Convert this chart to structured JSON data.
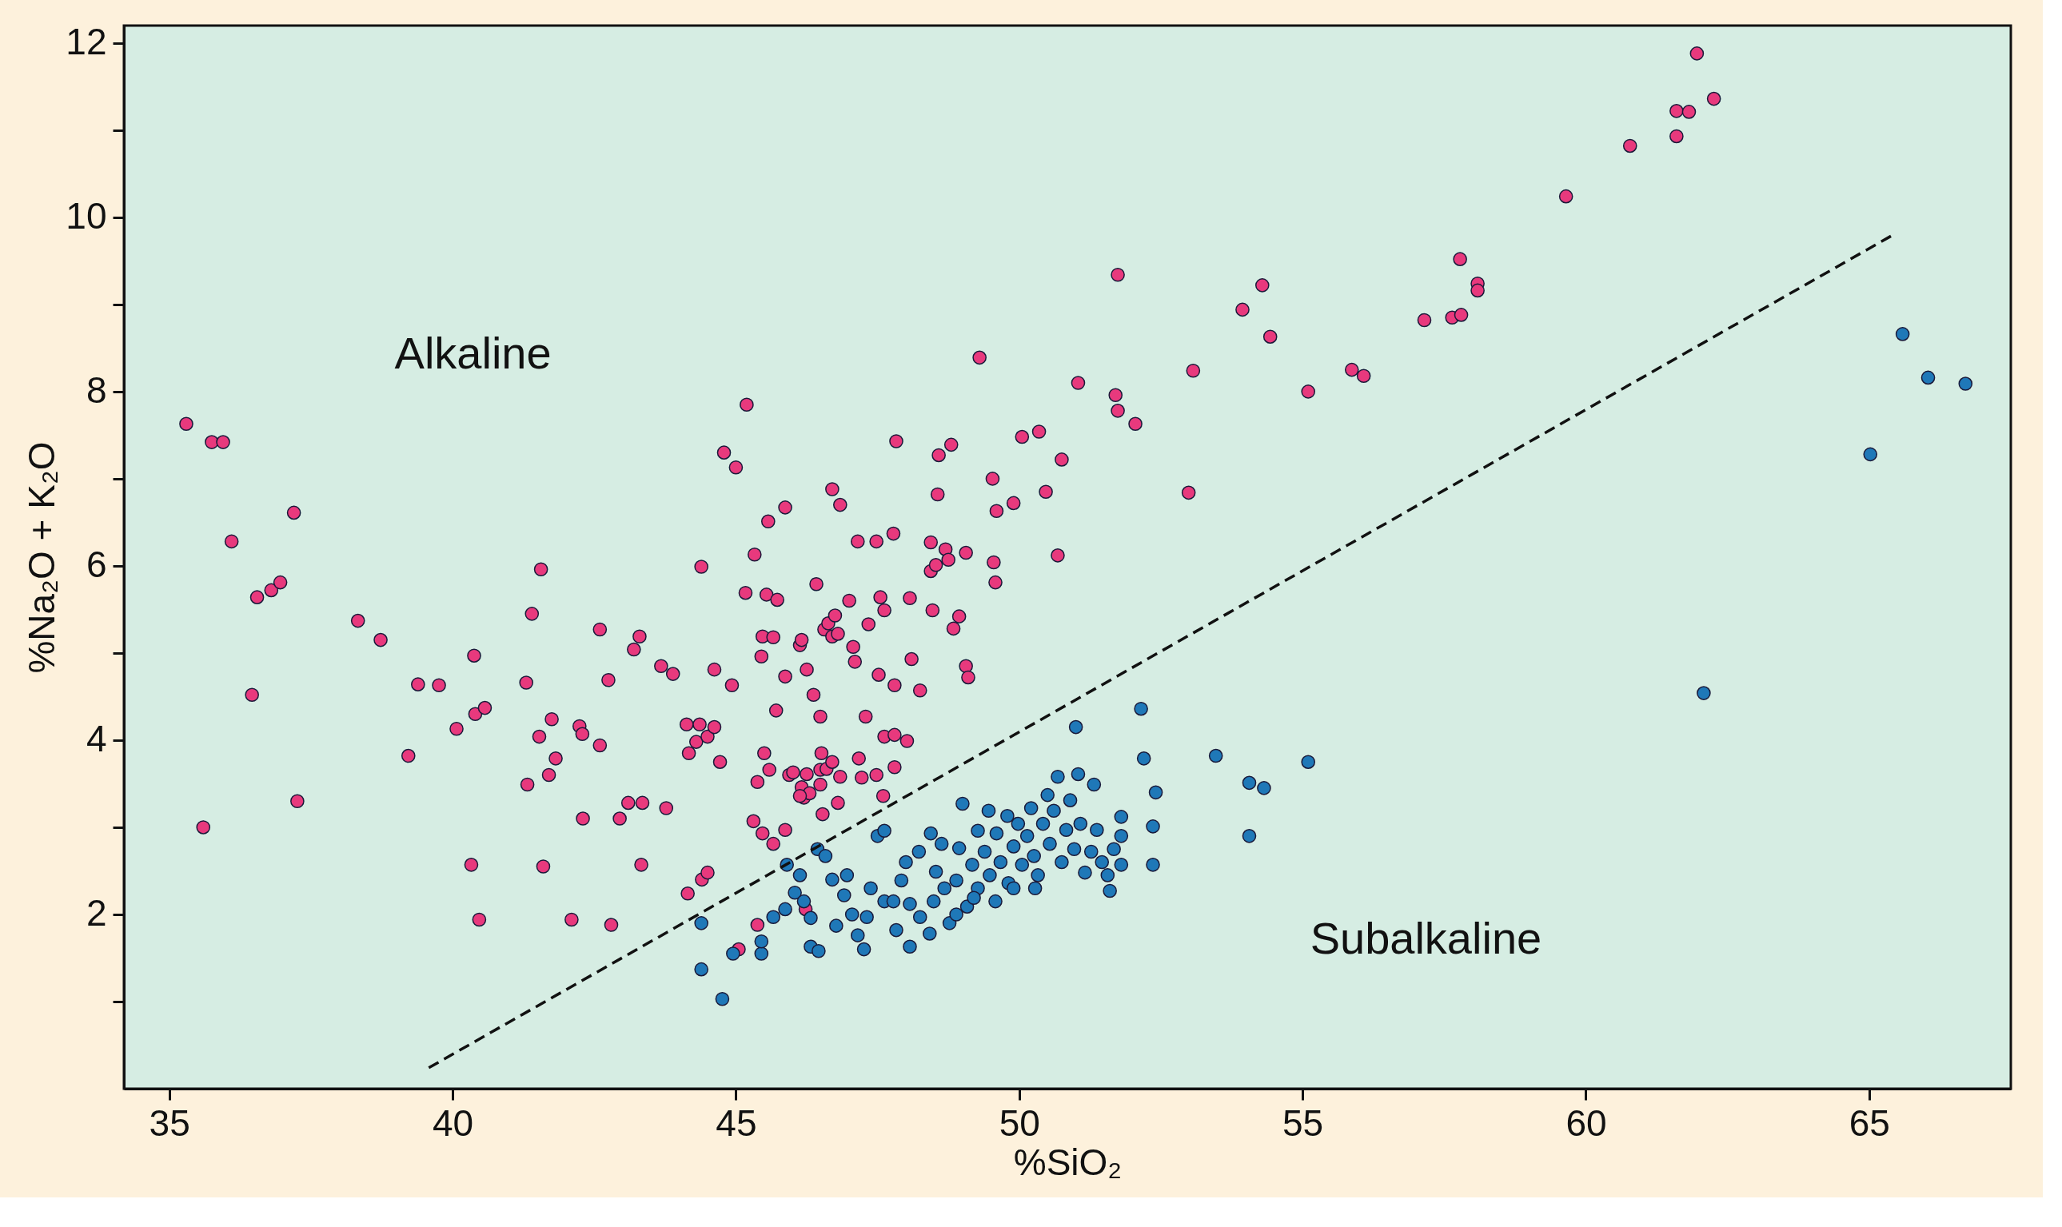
{
  "chart_data": {
    "type": "scatter",
    "xlabel": "%SiO₂",
    "ylabel": "%Na₂O + K₂O",
    "xlim": [
      34.2,
      67.5
    ],
    "ylim": [
      0,
      12.2
    ],
    "xticks": [
      35,
      40,
      45,
      50,
      55,
      60,
      65
    ],
    "yticks": [
      {
        "value": 1,
        "label": null
      },
      2,
      {
        "value": 3,
        "label": null
      },
      4,
      {
        "value": 5,
        "label": null
      },
      6,
      {
        "value": 7,
        "label": null
      },
      8,
      {
        "value": 9,
        "label": null
      },
      10,
      {
        "value": 11,
        "label": null
      },
      12
    ],
    "grid": false,
    "annotations": [
      "Alkaline",
      "Subalkaline"
    ],
    "series": [
      {
        "type": "scatter",
        "marker": "circle",
        "color": "#e8397d",
        "x": [
          35.3,
          35.75,
          35.95,
          36.1,
          35.6,
          36.46,
          36.55,
          36.8,
          36.96,
          37.2,
          37.26,
          38.33,
          38.73,
          39.22,
          39.39,
          39.76,
          40.07,
          40.38,
          40.4,
          40.57,
          40.33,
          40.47,
          41.3,
          41.32,
          41.4,
          41.56,
          41.53,
          41.7,
          41.75,
          41.82,
          41.6,
          42.1,
          42.24,
          42.29,
          42.3,
          42.6,
          42.6,
          42.75,
          42.8,
          42.95,
          43.1,
          43.2,
          43.3,
          43.35,
          43.33,
          43.68,
          43.77,
          43.89,
          44.13,
          44.17,
          44.3,
          44.36,
          44.39,
          44.5,
          44.62,
          44.62,
          44.72,
          44.79,
          45.0,
          44.93,
          45.19,
          45.17,
          45.33,
          45.38,
          45.45,
          45.47,
          45.57,
          45.87,
          45.54,
          45.73,
          45.66,
          45.71,
          45.5,
          45.59,
          45.31,
          45.47,
          45.66,
          45.87,
          45.94,
          45.87,
          46.01,
          46.16,
          46.2,
          46.25,
          46.13,
          46.25,
          46.37,
          46.49,
          46.49,
          46.51,
          46.3,
          46.13,
          46.16,
          46.42,
          46.49,
          46.56,
          46.63,
          46.7,
          46.75,
          46.8,
          46.7,
          46.84,
          46.6,
          46.7,
          46.84,
          46.8,
          46.53,
          47.0,
          47.07,
          47.1,
          47.17,
          47.22,
          47.15,
          47.29,
          47.34,
          47.48,
          47.55,
          47.52,
          47.48,
          47.6,
          47.62,
          47.78,
          47.83,
          47.8,
          47.62,
          47.8,
          47.8,
          48.02,
          48.07,
          48.1,
          48.25,
          48.44,
          48.44,
          48.47,
          48.53,
          48.56,
          48.58,
          48.7,
          48.75,
          48.8,
          48.84,
          48.94,
          49.06,
          49.06,
          49.1,
          49.3,
          49.53,
          49.55,
          49.58,
          49.6,
          49.9,
          50.05,
          50.35,
          50.47,
          50.75,
          50.68,
          51.04,
          51.7,
          51.74,
          51.74,
          52.05,
          52.99,
          53.07,
          53.94,
          54.29,
          54.43,
          55.1,
          55.87,
          56.08,
          57.15,
          57.64,
          57.8,
          57.78,
          58.09,
          58.09,
          59.65,
          60.78,
          61.6,
          61.6,
          61.82,
          61.96,
          62.26,
          44.15,
          44.4,
          44.5,
          45.05,
          45.38,
          46.23
        ],
        "values": [
          7.63,
          7.42,
          7.42,
          6.28,
          3.0,
          4.52,
          5.64,
          5.72,
          5.81,
          6.61,
          3.3,
          5.37,
          5.15,
          3.82,
          4.64,
          4.63,
          4.13,
          4.97,
          4.3,
          4.37,
          2.57,
          1.94,
          4.66,
          3.49,
          5.45,
          5.96,
          4.04,
          3.6,
          4.24,
          3.79,
          2.55,
          1.94,
          4.16,
          4.07,
          3.1,
          5.27,
          3.94,
          4.69,
          1.88,
          3.1,
          3.28,
          5.04,
          5.19,
          3.28,
          2.57,
          4.85,
          3.22,
          4.76,
          4.18,
          3.85,
          3.98,
          4.18,
          5.99,
          4.04,
          4.15,
          4.81,
          3.75,
          7.3,
          7.13,
          4.63,
          7.85,
          5.69,
          6.13,
          3.52,
          4.96,
          5.19,
          6.51,
          6.67,
          5.67,
          5.61,
          5.18,
          4.34,
          3.85,
          3.66,
          3.07,
          2.93,
          2.81,
          2.97,
          3.6,
          4.73,
          3.63,
          3.46,
          3.34,
          3.61,
          5.09,
          4.81,
          4.52,
          3.66,
          3.49,
          3.85,
          3.39,
          3.36,
          5.15,
          5.79,
          4.27,
          5.27,
          5.34,
          5.19,
          5.43,
          5.22,
          6.88,
          6.7,
          3.67,
          3.75,
          3.58,
          3.28,
          3.15,
          5.6,
          5.07,
          4.9,
          3.79,
          3.57,
          6.28,
          4.27,
          5.33,
          6.28,
          5.64,
          4.75,
          3.6,
          3.36,
          5.49,
          6.37,
          7.43,
          3.69,
          4.04,
          4.06,
          4.63,
          3.99,
          5.63,
          4.93,
          4.57,
          5.94,
          6.27,
          5.49,
          6.01,
          6.82,
          7.27,
          6.19,
          6.07,
          7.39,
          5.28,
          5.42,
          6.15,
          4.85,
          4.72,
          8.39,
          7.0,
          6.04,
          5.81,
          6.63,
          6.72,
          7.48,
          7.54,
          6.85,
          7.22,
          6.12,
          8.1,
          7.96,
          7.78,
          9.34,
          7.63,
          6.84,
          8.24,
          8.94,
          9.22,
          8.63,
          8.0,
          8.25,
          8.18,
          8.82,
          8.85,
          8.88,
          9.52,
          9.24,
          9.16,
          10.24,
          10.82,
          10.93,
          11.22,
          11.21,
          11.88,
          11.36,
          2.24,
          2.4,
          2.48,
          1.6,
          1.88,
          2.06
        ]
      },
      {
        "type": "scatter",
        "marker": "circle",
        "color": "#1f78b8",
        "x": [
          65.59,
          66.04,
          66.7,
          65.02,
          62.08,
          55.1,
          54.32,
          54.06,
          53.47,
          54.06,
          52.15,
          51.0,
          52.2,
          52.41,
          52.36,
          52.36,
          51.6,
          51.8,
          51.8,
          51.32,
          51.04,
          44.39,
          44.39,
          44.76,
          44.95,
          45.45,
          45.45,
          45.66,
          45.87,
          46.04,
          46.2,
          46.32,
          46.32,
          46.46,
          46.44,
          46.58,
          46.7,
          46.77,
          46.91,
          47.05,
          47.15,
          47.26,
          47.38,
          47.5,
          47.62,
          47.62,
          47.83,
          47.92,
          48.0,
          48.07,
          48.07,
          48.23,
          48.25,
          48.44,
          48.42,
          48.53,
          48.63,
          48.68,
          48.77,
          48.89,
          48.94,
          49.0,
          49.08,
          49.17,
          49.27,
          49.27,
          49.39,
          49.46,
          49.48,
          49.6,
          49.67,
          49.79,
          49.81,
          49.9,
          49.98,
          50.05,
          50.14,
          50.21,
          50.26,
          50.33,
          50.42,
          50.5,
          50.54,
          50.61,
          50.68,
          50.75,
          50.83,
          50.9,
          50.97,
          51.08,
          51.16,
          51.27,
          51.37,
          51.46,
          51.56,
          51.67,
          51.8,
          50.28,
          49.9,
          49.58,
          49.2,
          48.89,
          48.49,
          47.78,
          47.31,
          46.96,
          46.13,
          45.9
        ],
        "values": [
          8.66,
          8.16,
          8.09,
          7.28,
          4.54,
          3.75,
          3.45,
          3.51,
          3.82,
          2.9,
          4.36,
          4.15,
          3.79,
          3.4,
          3.01,
          2.57,
          2.27,
          2.9,
          3.12,
          3.49,
          3.61,
          1.9,
          1.37,
          1.03,
          1.55,
          1.55,
          1.69,
          1.97,
          2.06,
          2.25,
          2.15,
          1.96,
          1.63,
          1.58,
          2.75,
          2.67,
          2.4,
          1.87,
          2.22,
          2.0,
          1.76,
          1.6,
          2.3,
          2.9,
          2.96,
          2.15,
          1.82,
          2.39,
          2.6,
          2.12,
          1.63,
          2.72,
          1.97,
          2.93,
          1.78,
          2.49,
          2.81,
          2.3,
          1.9,
          2.39,
          2.76,
          3.27,
          2.09,
          2.57,
          2.96,
          2.3,
          2.72,
          3.19,
          2.45,
          2.93,
          2.6,
          3.13,
          2.36,
          2.78,
          3.04,
          2.57,
          2.9,
          3.22,
          2.67,
          2.45,
          3.04,
          3.37,
          2.81,
          3.19,
          3.58,
          2.6,
          2.97,
          3.31,
          2.75,
          3.04,
          2.48,
          2.72,
          2.97,
          2.6,
          2.45,
          2.75,
          2.57,
          2.3,
          2.3,
          2.15,
          2.19,
          2.0,
          2.15,
          2.15,
          1.97,
          2.45,
          2.45,
          2.57
        ]
      },
      {
        "type": "line",
        "line_style": "dashed",
        "color": "#111111",
        "x": [
          39.58,
          65.4
        ],
        "values": [
          0.24,
          9.79
        ]
      }
    ]
  }
}
